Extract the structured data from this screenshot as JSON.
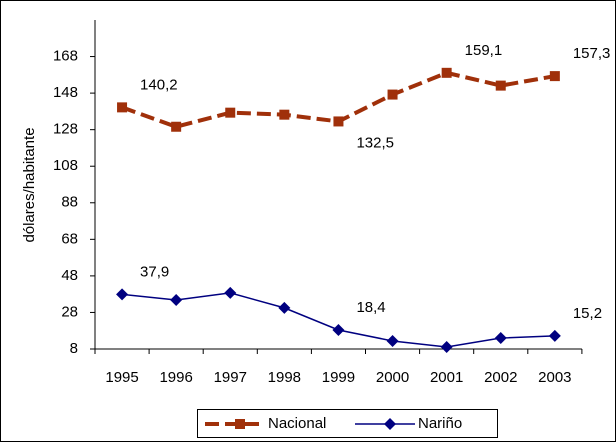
{
  "chart_data": {
    "type": "line",
    "y_label": "dólares/habitante",
    "categories": [
      "1995",
      "1996",
      "1997",
      "1998",
      "1999",
      "2000",
      "2001",
      "2002",
      "2003"
    ],
    "series": [
      {
        "name": "Nacional",
        "color": "#a0300a",
        "marker": "square",
        "dashed": true,
        "values": [
          140.2,
          129.6,
          137.3,
          136.2,
          132.5,
          147.2,
          159.1,
          152.1,
          157.3
        ],
        "value_labels": [
          "140,2",
          null,
          null,
          null,
          "132,5",
          null,
          "159,1",
          null,
          "157,3"
        ]
      },
      {
        "name": "Nariño",
        "color": "#000080",
        "marker": "diamond",
        "dashed": false,
        "values": [
          37.9,
          34.8,
          38.7,
          30.5,
          18.4,
          12.4,
          9.1,
          14,
          15.2
        ],
        "value_labels": [
          "37,9",
          null,
          null,
          null,
          "18,4",
          null,
          null,
          null,
          "15,2"
        ]
      }
    ],
    "ylim": [
      8,
      188
    ],
    "yticks": [
      8,
      28,
      48,
      68,
      88,
      108,
      128,
      148,
      168
    ],
    "legend": "bottom"
  }
}
